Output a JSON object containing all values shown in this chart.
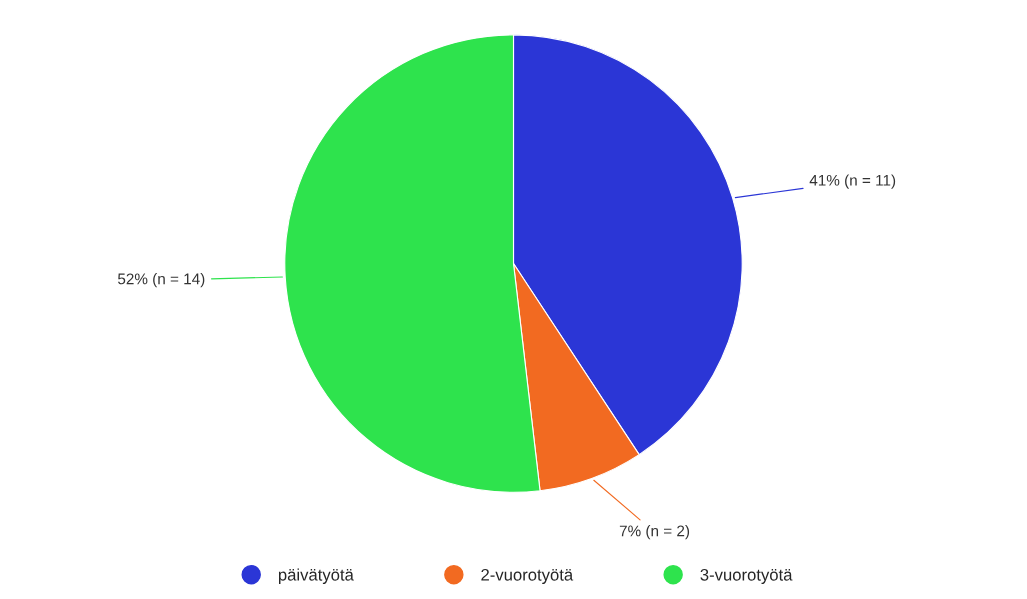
{
  "chart_data": {
    "type": "pie",
    "categories": [
      "päivätyötä",
      "2-vuorotyötä",
      "3-vuorotyötä"
    ],
    "values": [
      11,
      2,
      14
    ],
    "value_labels": [
      "41% (n = 11)",
      "7% (n = 2)",
      "52% (n = 14)"
    ],
    "colors": [
      "#2b36d6",
      "#f26a21",
      "#2ee34d"
    ],
    "legend": "bottom"
  }
}
